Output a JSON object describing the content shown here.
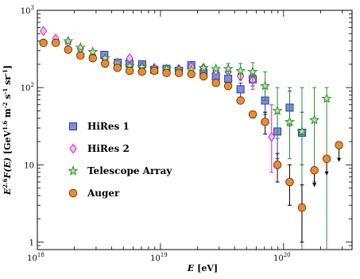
{
  "chart_data": {
    "type": "scatter",
    "x_scale": "log",
    "y_scale": "log",
    "xlim": [
      1e+18,
      3.6e+20
    ],
    "ylim": [
      0.8,
      1000
    ],
    "xlabel": {
      "italic": "E",
      "unit": "[eV]"
    },
    "ylabel": {
      "lead": "E",
      "exp": "2.6",
      "mid": "F(E) [GeV",
      "exp2": "1.6",
      "tail": "m",
      "exp3": "-2",
      "tail2": "s",
      "exp4": "-1",
      "tail3": "sr",
      "exp5": "-1",
      "close": "]"
    },
    "x_tick_labels": [
      {
        "base": "10",
        "exp": "18",
        "value": 1e+18
      },
      {
        "base": "10",
        "exp": "19",
        "value": 1e+19
      },
      {
        "base": "10",
        "exp": "20",
        "value": 1e+20
      }
    ],
    "y_tick_labels": [
      {
        "base": "1",
        "exp": "",
        "value": 1
      },
      {
        "base": "10",
        "exp": "",
        "value": 10
      },
      {
        "base": "10",
        "exp": "2",
        "value": 100
      },
      {
        "base": "10",
        "exp": "3",
        "value": 1000
      }
    ],
    "legend_position": "center-left",
    "series": [
      {
        "name": "HiRes 1",
        "marker": "square",
        "color": "#7b8fe0",
        "stroke": "#2a3a9a",
        "points": [
          {
            "x": 3.5e+18,
            "y": 265
          },
          {
            "x": 4.5e+18,
            "y": 210
          },
          {
            "x": 5.6e+18,
            "y": 205
          },
          {
            "x": 7.1e+18,
            "y": 200
          },
          {
            "x": 8.9e+18,
            "y": 170
          },
          {
            "x": 1.12e+19,
            "y": 175
          },
          {
            "x": 1.41e+19,
            "y": 165
          },
          {
            "x": 1.78e+19,
            "y": 195
          },
          {
            "x": 2.24e+19,
            "y": 155
          },
          {
            "x": 2.82e+19,
            "y": 140
          },
          {
            "x": 3.55e+19,
            "y": 130
          },
          {
            "x": 4.47e+19,
            "y": 95,
            "err": [
              75,
              115
            ]
          },
          {
            "x": 5.62e+19,
            "y": 128,
            "err": [
              105,
              150
            ]
          },
          {
            "x": 7.08e+19,
            "y": 68,
            "err": [
              45,
              105
            ]
          },
          {
            "x": 8.91e+19,
            "y": 27,
            "err": [
              12,
              50
            ]
          },
          {
            "x": 1.12e+20,
            "y": 55,
            "err": [
              32,
              90
            ]
          },
          {
            "x": 1.41e+20,
            "y": 26,
            "err": [
              10,
              48
            ]
          }
        ]
      },
      {
        "name": "HiRes 2",
        "marker": "diamond",
        "color": "#f7c2f0",
        "stroke": "#d21ed2",
        "points": [
          {
            "x": 1.12e+18,
            "y": 540
          },
          {
            "x": 1.41e+18,
            "y": 430
          },
          {
            "x": 1.78e+18,
            "y": 390
          },
          {
            "x": 2.24e+18,
            "y": 320
          },
          {
            "x": 2.82e+18,
            "y": 260
          },
          {
            "x": 3.55e+18,
            "y": 230
          },
          {
            "x": 4.47e+18,
            "y": 210
          },
          {
            "x": 5.62e+18,
            "y": 240
          },
          {
            "x": 7.08e+18,
            "y": 185
          },
          {
            "x": 8.91e+18,
            "y": 180
          },
          {
            "x": 1.12e+19,
            "y": 160
          },
          {
            "x": 1.41e+19,
            "y": 175
          },
          {
            "x": 1.78e+19,
            "y": 185
          },
          {
            "x": 2.24e+19,
            "y": 180
          },
          {
            "x": 2.82e+19,
            "y": 165
          },
          {
            "x": 3.55e+19,
            "y": 160
          },
          {
            "x": 4.47e+19,
            "y": 140
          },
          {
            "x": 5.62e+19,
            "y": 125,
            "err": [
              95,
              165
            ]
          },
          {
            "x": 8e+19,
            "y": 23,
            "err": [
              8,
              60
            ]
          }
        ]
      },
      {
        "name": "Telescope Array",
        "marker": "star",
        "color": "#b8e7a8",
        "stroke": "#2e8b2e",
        "points": [
          {
            "x": 1.78e+18,
            "y": 400
          },
          {
            "x": 2.24e+18,
            "y": 330
          },
          {
            "x": 2.82e+18,
            "y": 290
          },
          {
            "x": 3.55e+18,
            "y": 240
          },
          {
            "x": 4.47e+18,
            "y": 200
          },
          {
            "x": 5.62e+18,
            "y": 190
          },
          {
            "x": 7.08e+18,
            "y": 185
          },
          {
            "x": 8.91e+18,
            "y": 175
          },
          {
            "x": 1.12e+19,
            "y": 175
          },
          {
            "x": 1.41e+19,
            "y": 170
          },
          {
            "x": 1.78e+19,
            "y": 170
          },
          {
            "x": 2.24e+19,
            "y": 180
          },
          {
            "x": 2.82e+19,
            "y": 175
          },
          {
            "x": 3.55e+19,
            "y": 175,
            "err": [
              150,
              205
            ]
          },
          {
            "x": 4.47e+19,
            "y": 165,
            "err": [
              125,
              205
            ]
          },
          {
            "x": 5.62e+19,
            "y": 160,
            "err": [
              115,
              210
            ]
          },
          {
            "x": 7.08e+19,
            "y": 105,
            "err": [
              68,
              160
            ]
          },
          {
            "x": 8.91e+19,
            "y": 50,
            "err": [
              22,
              100
            ]
          },
          {
            "x": 1.12e+20,
            "y": 36,
            "err": [
              12,
              100
            ]
          },
          {
            "x": 1.41e+20,
            "y": 27,
            "err": [
              0.8,
              100
            ]
          },
          {
            "x": 1.78e+20,
            "y": 38,
            "err": [
              6,
              100
            ]
          },
          {
            "x": 2.24e+20,
            "y": 72,
            "err": [
              0.8,
              100
            ]
          }
        ]
      },
      {
        "name": "Auger",
        "marker": "circle",
        "color": "#f08a2e",
        "stroke": "#4a2300",
        "points": [
          {
            "x": 1.12e+18,
            "y": 380
          },
          {
            "x": 1.41e+18,
            "y": 380
          },
          {
            "x": 1.78e+18,
            "y": 310
          },
          {
            "x": 2.24e+18,
            "y": 260
          },
          {
            "x": 2.82e+18,
            "y": 240
          },
          {
            "x": 3.55e+18,
            "y": 205
          },
          {
            "x": 4.47e+18,
            "y": 180
          },
          {
            "x": 5.62e+18,
            "y": 165
          },
          {
            "x": 7.08e+18,
            "y": 160
          },
          {
            "x": 8.91e+18,
            "y": 165
          },
          {
            "x": 1.12e+19,
            "y": 155
          },
          {
            "x": 1.41e+19,
            "y": 155
          },
          {
            "x": 1.78e+19,
            "y": 150
          },
          {
            "x": 2.24e+19,
            "y": 140
          },
          {
            "x": 2.82e+19,
            "y": 115
          },
          {
            "x": 3.55e+19,
            "y": 105
          },
          {
            "x": 4.47e+19,
            "y": 68
          },
          {
            "x": 5.62e+19,
            "y": 45
          },
          {
            "x": 7.08e+19,
            "y": 36,
            "err": [
              25,
              48
            ]
          },
          {
            "x": 8.91e+19,
            "y": 10,
            "err": [
              6,
              14
            ]
          },
          {
            "x": 1.12e+20,
            "y": 6,
            "err": [
              3,
              10
            ]
          },
          {
            "x": 1.41e+20,
            "y": 2.8,
            "err": [
              1,
              5.5
            ]
          },
          {
            "x": 1.78e+20,
            "y": 8.5,
            "upper_limit": true
          },
          {
            "x": 2.24e+20,
            "y": 12,
            "upper_limit": true
          },
          {
            "x": 2.82e+20,
            "y": 18,
            "upper_limit": true
          }
        ]
      }
    ]
  }
}
